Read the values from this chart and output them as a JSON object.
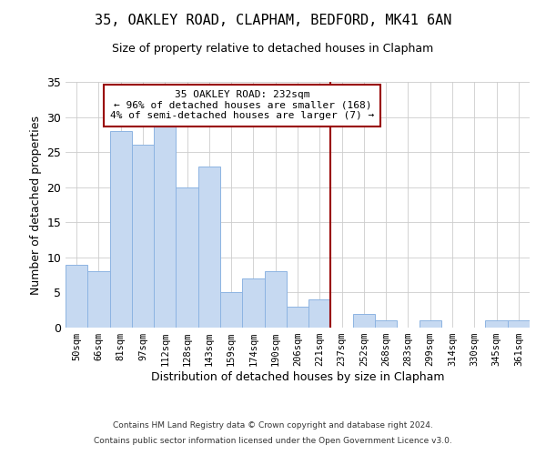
{
  "title": "35, OAKLEY ROAD, CLAPHAM, BEDFORD, MK41 6AN",
  "subtitle": "Size of property relative to detached houses in Clapham",
  "xlabel": "Distribution of detached houses by size in Clapham",
  "ylabel": "Number of detached properties",
  "bar_labels": [
    "50sqm",
    "66sqm",
    "81sqm",
    "97sqm",
    "112sqm",
    "128sqm",
    "143sqm",
    "159sqm",
    "174sqm",
    "190sqm",
    "206sqm",
    "221sqm",
    "237sqm",
    "252sqm",
    "268sqm",
    "283sqm",
    "299sqm",
    "314sqm",
    "330sqm",
    "345sqm",
    "361sqm"
  ],
  "bar_values": [
    9,
    8,
    28,
    26,
    29,
    20,
    23,
    5,
    7,
    8,
    3,
    4,
    0,
    2,
    1,
    0,
    1,
    0,
    0,
    1,
    1
  ],
  "bar_color": "#c6d9f1",
  "bar_edgecolor": "#8db4e2",
  "ylim": [
    0,
    35
  ],
  "yticks": [
    0,
    5,
    10,
    15,
    20,
    25,
    30,
    35
  ],
  "vline_color": "#990000",
  "annotation_title": "35 OAKLEY ROAD: 232sqm",
  "annotation_line1": "← 96% of detached houses are smaller (168)",
  "annotation_line2": "4% of semi-detached houses are larger (7) →",
  "annotation_box_color": "#ffffff",
  "annotation_box_edgecolor": "#990000",
  "footer_line1": "Contains HM Land Registry data © Crown copyright and database right 2024.",
  "footer_line2": "Contains public sector information licensed under the Open Government Licence v3.0.",
  "background_color": "#ffffff",
  "grid_color": "#cccccc"
}
